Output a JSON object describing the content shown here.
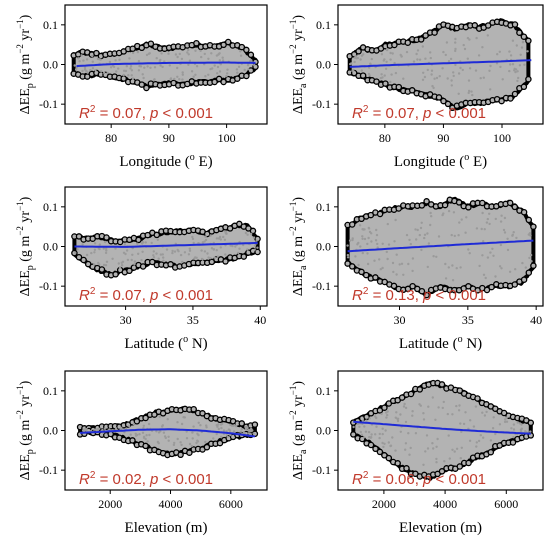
{
  "figure": {
    "y_symbol": "ΔEE",
    "y_units_open": " (g m",
    "y_units_mid": " yr",
    "y_units_close": ")",
    "y_sup_area": "−2",
    "y_sup_time": "−1",
    "stat_r2": "R",
    "stat_r2_sup": "2",
    "stat_eq1": " = ",
    "stat_sep": ", ",
    "stat_p": "p",
    "stat_eq2": " < "
  },
  "chart_data": [
    {
      "id": "p1",
      "type": "scatter",
      "ylabel_subscript": "p",
      "xlabel": "Longitude (° E)",
      "xlabel_parts": [
        "Longitude (",
        "o",
        " E)"
      ],
      "xlim": [
        72,
        107
      ],
      "ylim": [
        -0.15,
        0.15
      ],
      "xticks": [
        80,
        90,
        100
      ],
      "yticks": [
        0.1,
        0.0,
        -0.1
      ],
      "ytick_labels": [
        "0.1",
        "0.0",
        "-0.1"
      ],
      "cloud": {
        "x": [
          73.5,
          75,
          78,
          80,
          83,
          86,
          88,
          90,
          92,
          95,
          98,
          100,
          103,
          105
        ],
        "upper": [
          0.025,
          0.03,
          0.025,
          0.025,
          0.035,
          0.05,
          0.045,
          0.04,
          0.045,
          0.05,
          0.045,
          0.055,
          0.04,
          0.01
        ],
        "lower": [
          -0.02,
          -0.03,
          -0.025,
          -0.03,
          -0.04,
          -0.055,
          -0.05,
          -0.045,
          -0.05,
          -0.045,
          -0.04,
          -0.04,
          -0.03,
          -0.01
        ]
      },
      "trend": {
        "x": [
          74,
          80,
          90,
          100,
          105
        ],
        "y": [
          -0.004,
          0.001,
          0.004,
          0.005,
          0.004
        ]
      },
      "r2": "0.07",
      "p": "0.001"
    },
    {
      "id": "p2",
      "type": "scatter",
      "ylabel_subscript": "a",
      "xlabel": "Longitude (° E)",
      "xlabel_parts": [
        "Longitude (",
        "o",
        " E)"
      ],
      "xlim": [
        72,
        107
      ],
      "ylim": [
        -0.15,
        0.15
      ],
      "xticks": [
        80,
        90,
        100
      ],
      "yticks": [
        0.1,
        0.0,
        -0.1
      ],
      "ytick_labels": [
        "0.1",
        "0.0",
        "-0.1"
      ],
      "cloud": {
        "x": [
          74,
          76,
          78,
          80,
          82,
          85,
          88,
          90,
          92,
          94,
          96,
          98,
          100,
          102,
          104.5
        ],
        "upper": [
          0.02,
          0.04,
          0.035,
          0.05,
          0.055,
          0.06,
          0.08,
          0.1,
          0.09,
          0.1,
          0.095,
          0.1,
          0.11,
          0.1,
          0.06
        ],
        "lower": [
          -0.02,
          -0.03,
          -0.04,
          -0.05,
          -0.06,
          -0.07,
          -0.08,
          -0.09,
          -0.11,
          -0.1,
          -0.1,
          -0.09,
          -0.09,
          -0.08,
          -0.04
        ]
      },
      "trend": {
        "x": [
          74,
          80,
          90,
          100,
          105
        ],
        "y": [
          -0.006,
          -0.002,
          0.003,
          0.008,
          0.011
        ]
      },
      "r2": "0.07",
      "p": "0.001"
    },
    {
      "id": "p3",
      "type": "scatter",
      "ylabel_subscript": "p",
      "xlabel": "Latitude (° N)",
      "xlabel_parts": [
        "Latitude (",
        "o",
        " N)"
      ],
      "xlim": [
        25.5,
        40.5
      ],
      "ylim": [
        -0.15,
        0.15
      ],
      "xticks": [
        30,
        35,
        40
      ],
      "yticks": [
        0.1,
        0.0,
        -0.1
      ],
      "ytick_labels": [
        "0.1",
        "0.0",
        "-0.1"
      ],
      "cloud": {
        "x": [
          26.2,
          27,
          28,
          29,
          30,
          31,
          32,
          33,
          34,
          35,
          36,
          37,
          38,
          39,
          39.8
        ],
        "upper": [
          0.03,
          0.02,
          0.025,
          0.015,
          0.015,
          0.02,
          0.03,
          0.035,
          0.04,
          0.04,
          0.035,
          0.045,
          0.05,
          0.055,
          0.02
        ],
        "lower": [
          -0.02,
          -0.04,
          -0.06,
          -0.07,
          -0.06,
          -0.05,
          -0.04,
          -0.045,
          -0.05,
          -0.045,
          -0.04,
          -0.035,
          -0.03,
          -0.02,
          -0.01
        ]
      },
      "trend": {
        "x": [
          26.2,
          30,
          35,
          39.8
        ],
        "y": [
          0.0,
          -0.001,
          0.004,
          0.009
        ]
      },
      "r2": "0.07",
      "p": "0.001"
    },
    {
      "id": "p4",
      "type": "scatter",
      "ylabel_subscript": "a",
      "xlabel": "Latitude (° N)",
      "xlabel_parts": [
        "Latitude (",
        "o",
        " N)"
      ],
      "xlim": [
        25.5,
        40.5
      ],
      "ylim": [
        -0.15,
        0.15
      ],
      "xticks": [
        30,
        35,
        40
      ],
      "yticks": [
        0.1,
        0.0,
        -0.1
      ],
      "ytick_labels": [
        "0.1",
        "0.0",
        "-0.1"
      ],
      "cloud": {
        "x": [
          26.2,
          27,
          28,
          29,
          30,
          31,
          32,
          33,
          34,
          35,
          36,
          37,
          38,
          39,
          39.8
        ],
        "upper": [
          0.05,
          0.07,
          0.08,
          0.09,
          0.1,
          0.1,
          0.11,
          0.1,
          0.12,
          0.1,
          0.11,
          0.1,
          0.11,
          0.09,
          0.05
        ],
        "lower": [
          -0.04,
          -0.06,
          -0.08,
          -0.09,
          -0.11,
          -0.1,
          -0.12,
          -0.1,
          -0.11,
          -0.1,
          -0.11,
          -0.1,
          -0.1,
          -0.09,
          -0.05
        ]
      },
      "trend": {
        "x": [
          26.2,
          30,
          35,
          39.8
        ],
        "y": [
          -0.012,
          -0.004,
          0.006,
          0.015
        ]
      },
      "r2": "0.13",
      "p": "0.001"
    },
    {
      "id": "p5",
      "type": "scatter",
      "ylabel_subscript": "p",
      "xlabel": "Elevation (m)",
      "xlabel_parts": [
        "Elevation (m)",
        "",
        ""
      ],
      "xlim": [
        500,
        7200
      ],
      "ylim": [
        -0.15,
        0.15
      ],
      "xticks": [
        2000,
        4000,
        6000
      ],
      "yticks": [
        0.1,
        0.0,
        -0.1
      ],
      "ytick_labels": [
        "0.1",
        "0.0",
        "-0.1"
      ],
      "cloud": {
        "x": [
          1000,
          1500,
          2000,
          2500,
          3000,
          3500,
          4000,
          4500,
          5000,
          5500,
          6000,
          6500,
          6800
        ],
        "upper": [
          0.005,
          0.006,
          0.008,
          0.015,
          0.03,
          0.045,
          0.05,
          0.055,
          0.045,
          0.03,
          0.02,
          0.012,
          0.01
        ],
        "lower": [
          -0.005,
          -0.006,
          -0.01,
          -0.02,
          -0.035,
          -0.05,
          -0.06,
          -0.055,
          -0.045,
          -0.03,
          -0.02,
          -0.012,
          -0.01
        ]
      },
      "trend": {
        "x": [
          1000,
          2000,
          3000,
          4000,
          5000,
          6000,
          6800
        ],
        "y": [
          -0.006,
          -0.002,
          0.002,
          0.003,
          0.0,
          -0.007,
          -0.015
        ]
      },
      "r2": "0.02",
      "p": "0.001"
    },
    {
      "id": "p6",
      "type": "scatter",
      "ylabel_subscript": "a",
      "xlabel": "Elevation (m)",
      "xlabel_parts": [
        "Elevation (m)",
        "",
        ""
      ],
      "xlim": [
        500,
        7200
      ],
      "ylim": [
        -0.15,
        0.15
      ],
      "xticks": [
        2000,
        4000,
        6000
      ],
      "yticks": [
        0.1,
        0.0,
        -0.1
      ],
      "ytick_labels": [
        "0.1",
        "0.0",
        "-0.1"
      ],
      "cloud": {
        "x": [
          1000,
          1500,
          2000,
          2500,
          3000,
          3500,
          4000,
          4500,
          5000,
          5500,
          6000,
          6500,
          6800
        ],
        "upper": [
          0.02,
          0.04,
          0.06,
          0.08,
          0.1,
          0.12,
          0.11,
          0.1,
          0.08,
          0.06,
          0.04,
          0.025,
          0.02
        ],
        "lower": [
          -0.01,
          -0.03,
          -0.06,
          -0.09,
          -0.11,
          -0.12,
          -0.1,
          -0.09,
          -0.07,
          -0.05,
          -0.03,
          -0.02,
          -0.01
        ]
      },
      "trend": {
        "x": [
          1000,
          2000,
          3000,
          4000,
          5000,
          6000,
          6800
        ],
        "y": [
          0.022,
          0.016,
          0.01,
          0.004,
          -0.001,
          -0.005,
          -0.008
        ]
      },
      "r2": "0.06",
      "p": "0.001"
    }
  ]
}
